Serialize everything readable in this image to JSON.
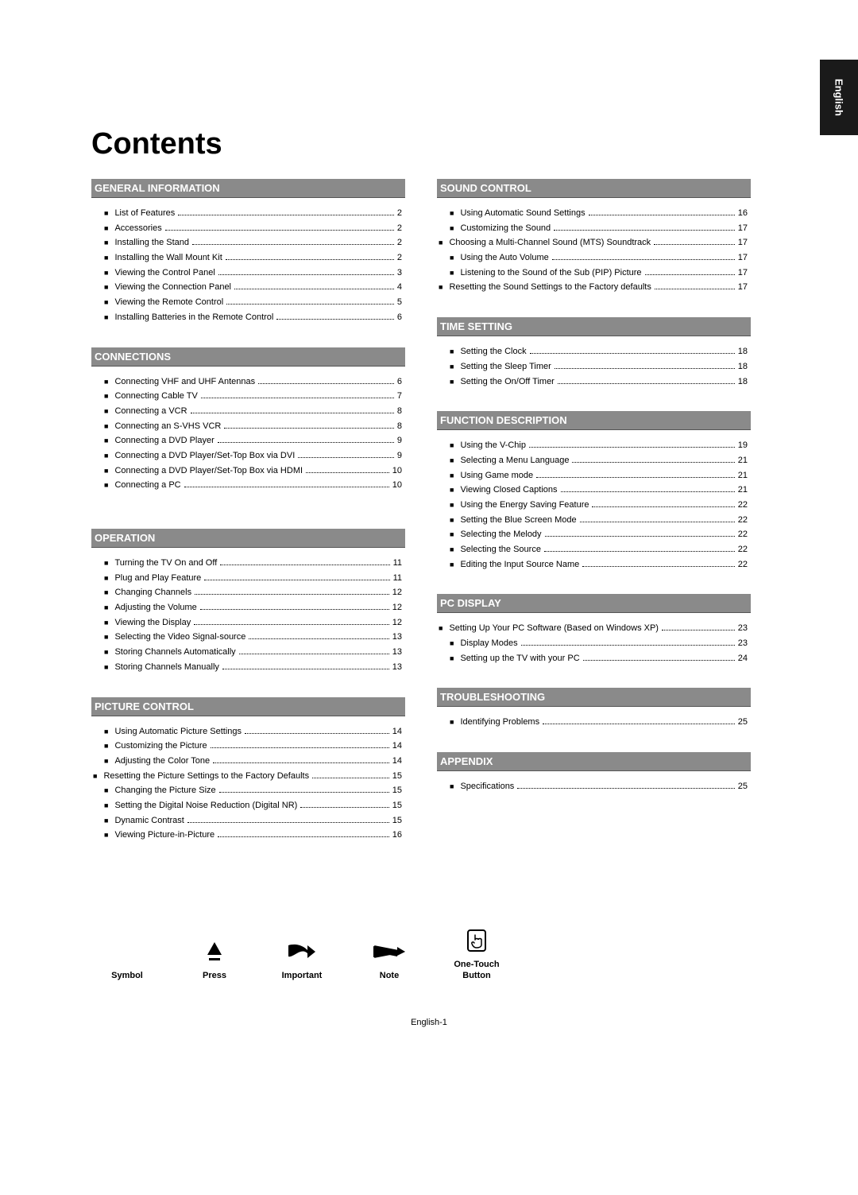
{
  "side_tab": "English",
  "title": "Contents",
  "footer": "English-1",
  "left_sections": [
    {
      "header": "GENERAL INFORMATION",
      "items": [
        {
          "label": "List of Features",
          "page": "2",
          "indent": 1
        },
        {
          "label": "Accessories",
          "page": "2",
          "indent": 1
        },
        {
          "label": "Installing the Stand",
          "page": "2",
          "indent": 1
        },
        {
          "label": "Installing the Wall Mount Kit",
          "page": "2",
          "indent": 1
        },
        {
          "label": "Viewing the Control Panel",
          "page": "3",
          "indent": 1
        },
        {
          "label": "Viewing the Connection Panel",
          "page": "4",
          "indent": 1
        },
        {
          "label": "Viewing the Remote Control",
          "page": "5",
          "indent": 1
        },
        {
          "label": "Installing Batteries in the Remote Control",
          "page": "6",
          "indent": 1
        }
      ]
    },
    {
      "header": "CONNECTIONS",
      "items": [
        {
          "label": "Connecting VHF and UHF Antennas",
          "page": "6",
          "indent": 1
        },
        {
          "label": "Connecting Cable TV",
          "page": "7",
          "indent": 1
        },
        {
          "label": "Connecting a VCR",
          "page": "8",
          "indent": 1
        },
        {
          "label": "Connecting an S-VHS VCR",
          "page": "8",
          "indent": 1
        },
        {
          "label": "Connecting a DVD Player",
          "page": "9",
          "indent": 1
        },
        {
          "label": "Connecting a DVD Player/Set-Top Box via DVI",
          "page": "9",
          "indent": 1
        },
        {
          "label": "Connecting a DVD Player/Set-Top Box via HDMI",
          "page": "10",
          "indent": 1
        },
        {
          "label": "Connecting a PC",
          "page": "10",
          "indent": 1
        }
      ]
    },
    {
      "header": "OPERATION",
      "items": [
        {
          "label": "Turning the TV On and Off",
          "page": "11",
          "indent": 1
        },
        {
          "label": "Plug and Play Feature",
          "page": "11",
          "indent": 1
        },
        {
          "label": "Changing Channels",
          "page": "12",
          "indent": 1
        },
        {
          "label": "Adjusting the Volume",
          "page": "12",
          "indent": 1
        },
        {
          "label": "Viewing the Display",
          "page": "12",
          "indent": 1
        },
        {
          "label": "Selecting the Video Signal-source",
          "page": "13",
          "indent": 1
        },
        {
          "label": "Storing Channels Automatically",
          "page": "13",
          "indent": 1
        },
        {
          "label": "Storing Channels Manually",
          "page": "13",
          "indent": 1
        }
      ]
    },
    {
      "header": "PICTURE CONTROL",
      "items": [
        {
          "label": "Using Automatic Picture Settings",
          "page": "14",
          "indent": 1
        },
        {
          "label": "Customizing the Picture",
          "page": "14",
          "indent": 1
        },
        {
          "label": "Adjusting the Color Tone",
          "page": "14",
          "indent": 1
        },
        {
          "label": "Resetting the Picture Settings to the Factory Defaults",
          "page": "15",
          "indent": 0
        },
        {
          "label": "Changing the Picture Size",
          "page": "15",
          "indent": 1
        },
        {
          "label": "Setting the Digital Noise Reduction (Digital NR)",
          "page": "15",
          "indent": 1
        },
        {
          "label": "Dynamic Contrast",
          "page": "15",
          "indent": 1
        },
        {
          "label": "Viewing Picture-in-Picture",
          "page": "16",
          "indent": 1
        }
      ]
    }
  ],
  "right_sections": [
    {
      "header": "SOUND CONTROL",
      "items": [
        {
          "label": "Using Automatic Sound Settings",
          "page": "16",
          "indent": 1
        },
        {
          "label": "Customizing the Sound",
          "page": "17",
          "indent": 1
        },
        {
          "label": "Choosing a Multi-Channel Sound (MTS) Soundtrack",
          "page": "17",
          "indent": 0
        },
        {
          "label": "Using the Auto Volume",
          "page": "17",
          "indent": 1
        },
        {
          "label": "Listening to the Sound of the Sub (PIP) Picture",
          "page": "17",
          "indent": 1
        },
        {
          "label": "Resetting the Sound Settings to the Factory defaults",
          "page": "17",
          "indent": 0
        }
      ]
    },
    {
      "header": "TIME SETTING",
      "items": [
        {
          "label": "Setting the Clock",
          "page": "18",
          "indent": 1
        },
        {
          "label": "Setting the Sleep Timer",
          "page": "18",
          "indent": 1
        },
        {
          "label": "Setting the On/Off Timer",
          "page": "18",
          "indent": 1
        }
      ]
    },
    {
      "header": "FUNCTION DESCRIPTION",
      "items": [
        {
          "label": "Using the V-Chip",
          "page": "19",
          "indent": 1
        },
        {
          "label": "Selecting a Menu Language",
          "page": "21",
          "indent": 1
        },
        {
          "label": "Using Game mode",
          "page": "21",
          "indent": 1
        },
        {
          "label": "Viewing Closed Captions",
          "page": "21",
          "indent": 1
        },
        {
          "label": "Using the Energy Saving Feature",
          "page": "22",
          "indent": 1
        },
        {
          "label": "Setting the Blue Screen Mode",
          "page": "22",
          "indent": 1
        },
        {
          "label": "Selecting the Melody",
          "page": "22",
          "indent": 1
        },
        {
          "label": "Selecting the Source",
          "page": "22",
          "indent": 1
        },
        {
          "label": "Editing the Input Source Name",
          "page": "22",
          "indent": 1
        }
      ]
    },
    {
      "header": "PC DISPLAY",
      "items": [
        {
          "label": "Setting Up Your PC Software (Based on Windows XP)",
          "page": "23",
          "indent": 0
        },
        {
          "label": "Display Modes",
          "page": "23",
          "indent": 1
        },
        {
          "label": "Setting up the TV with your PC",
          "page": "24",
          "indent": 1
        }
      ]
    },
    {
      "header": "TROUBLESHOOTING",
      "items": [
        {
          "label": "Identifying Problems",
          "page": "25",
          "indent": 1
        }
      ]
    },
    {
      "header": "APPENDIX",
      "items": [
        {
          "label": "Specifications",
          "page": "25",
          "indent": 1
        }
      ]
    }
  ],
  "symbols": [
    {
      "label": "Symbol"
    },
    {
      "label": "Press"
    },
    {
      "label": "Important"
    },
    {
      "label": "Note"
    },
    {
      "label": "One-Touch\nButton"
    }
  ],
  "colors": {
    "page_bg": "#ffffff",
    "header_bg": "#8a8a8a",
    "header_text": "#ffffff",
    "side_tab_bg": "#1a1a1a",
    "text": "#000000"
  },
  "typography": {
    "title_size_pt": 28,
    "header_size_pt": 10,
    "body_size_pt": 8
  }
}
